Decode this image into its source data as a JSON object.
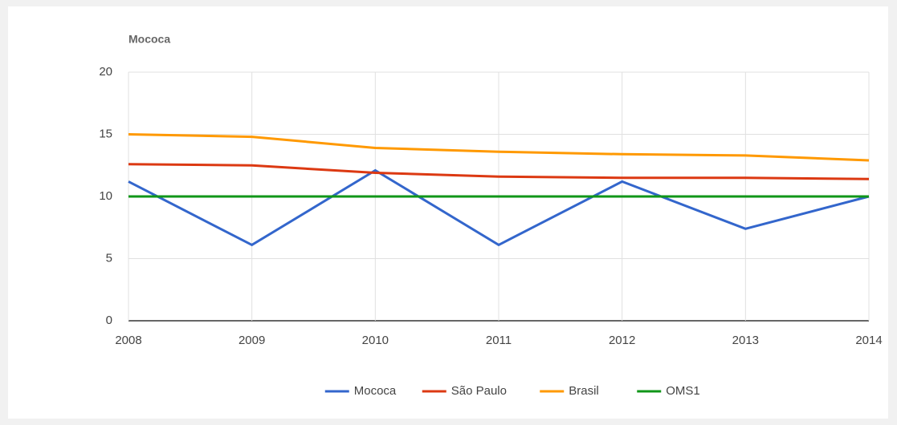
{
  "chart_data": {
    "type": "line",
    "title": "Mococa",
    "x": [
      2008,
      2009,
      2010,
      2011,
      2012,
      2013,
      2014
    ],
    "series": [
      {
        "name": "Mococa",
        "color": "#3366cc",
        "values": [
          11.2,
          6.1,
          12.1,
          6.1,
          11.2,
          7.4,
          10
        ]
      },
      {
        "name": "São Paulo",
        "color": "#dc3912",
        "values": [
          12.6,
          12.5,
          11.9,
          11.6,
          11.5,
          11.5,
          11.4
        ]
      },
      {
        "name": "Brasil",
        "color": "#ff9900",
        "values": [
          15.0,
          14.8,
          13.9,
          13.6,
          13.4,
          13.3,
          12.9
        ]
      },
      {
        "name": "OMS1",
        "color": "#109618",
        "values": [
          10,
          10,
          10,
          10,
          10,
          10,
          10
        ]
      }
    ],
    "xlim": [
      2008,
      2014
    ],
    "xticks": [
      2008,
      2009,
      2010,
      2011,
      2012,
      2013,
      2014
    ],
    "ylim": [
      0,
      20
    ],
    "yticks": [
      0,
      5,
      10,
      15,
      20
    ],
    "grid": true,
    "legend": "bottom"
  }
}
